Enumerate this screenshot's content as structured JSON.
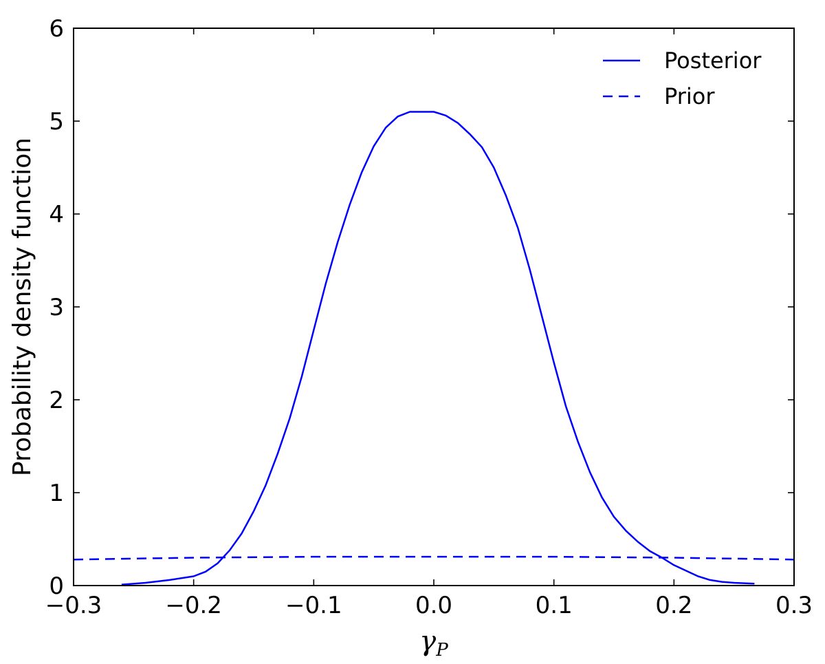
{
  "chart_data": {
    "type": "line",
    "title": "",
    "xlabel": "γP",
    "xlabel_main": "γ",
    "xlabel_sub": "P",
    "ylabel": "Probability density function",
    "xlim": [
      -0.3,
      0.3
    ],
    "ylim": [
      0,
      6
    ],
    "xticks": [
      -0.3,
      -0.2,
      -0.1,
      0.0,
      0.1,
      0.2,
      0.3
    ],
    "xtick_labels": [
      "−0.3",
      "−0.2",
      "−0.1",
      "0.0",
      "0.1",
      "0.2",
      "0.3"
    ],
    "yticks": [
      0,
      1,
      2,
      3,
      4,
      5,
      6
    ],
    "ytick_labels": [
      "0",
      "1",
      "2",
      "3",
      "4",
      "5",
      "6"
    ],
    "grid": false,
    "legend_position": "top-right",
    "series": [
      {
        "name": "Posterior",
        "style": "solid",
        "color": "#0000ff",
        "x": [
          -0.26,
          -0.24,
          -0.22,
          -0.2,
          -0.19,
          -0.18,
          -0.17,
          -0.16,
          -0.15,
          -0.14,
          -0.13,
          -0.12,
          -0.11,
          -0.1,
          -0.09,
          -0.08,
          -0.07,
          -0.06,
          -0.05,
          -0.04,
          -0.03,
          -0.02,
          -0.01,
          0.0,
          0.01,
          0.02,
          0.03,
          0.04,
          0.05,
          0.06,
          0.07,
          0.08,
          0.09,
          0.1,
          0.11,
          0.12,
          0.13,
          0.14,
          0.15,
          0.16,
          0.17,
          0.18,
          0.19,
          0.2,
          0.21,
          0.22,
          0.23,
          0.24,
          0.25,
          0.267
        ],
        "y": [
          0.01,
          0.03,
          0.06,
          0.1,
          0.15,
          0.24,
          0.38,
          0.56,
          0.8,
          1.08,
          1.42,
          1.8,
          2.25,
          2.75,
          3.25,
          3.7,
          4.1,
          4.45,
          4.73,
          4.93,
          5.05,
          5.1,
          5.1,
          5.1,
          5.06,
          4.98,
          4.86,
          4.72,
          4.5,
          4.2,
          3.85,
          3.4,
          2.9,
          2.4,
          1.93,
          1.55,
          1.22,
          0.95,
          0.74,
          0.59,
          0.47,
          0.37,
          0.3,
          0.22,
          0.16,
          0.1,
          0.06,
          0.04,
          0.03,
          0.02
        ]
      },
      {
        "name": "Prior",
        "style": "dashed",
        "color": "#0000ff",
        "x": [
          -0.3,
          -0.2,
          -0.1,
          0.0,
          0.1,
          0.2,
          0.3
        ],
        "y": [
          0.28,
          0.3,
          0.31,
          0.31,
          0.31,
          0.3,
          0.28
        ]
      }
    ]
  }
}
